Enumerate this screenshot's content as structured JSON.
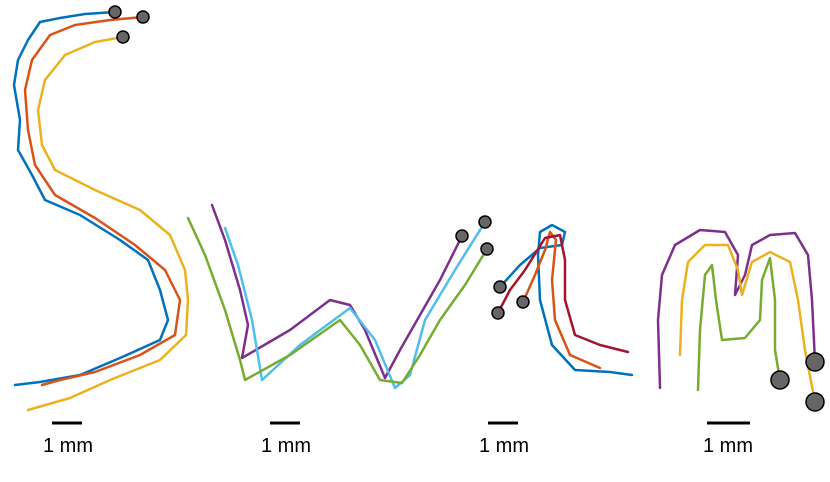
{
  "panels": [
    {
      "scale_label": "1 mm"
    },
    {
      "scale_label": "1 mm"
    },
    {
      "scale_label": "1 mm"
    },
    {
      "scale_label": "1 mm"
    }
  ]
}
